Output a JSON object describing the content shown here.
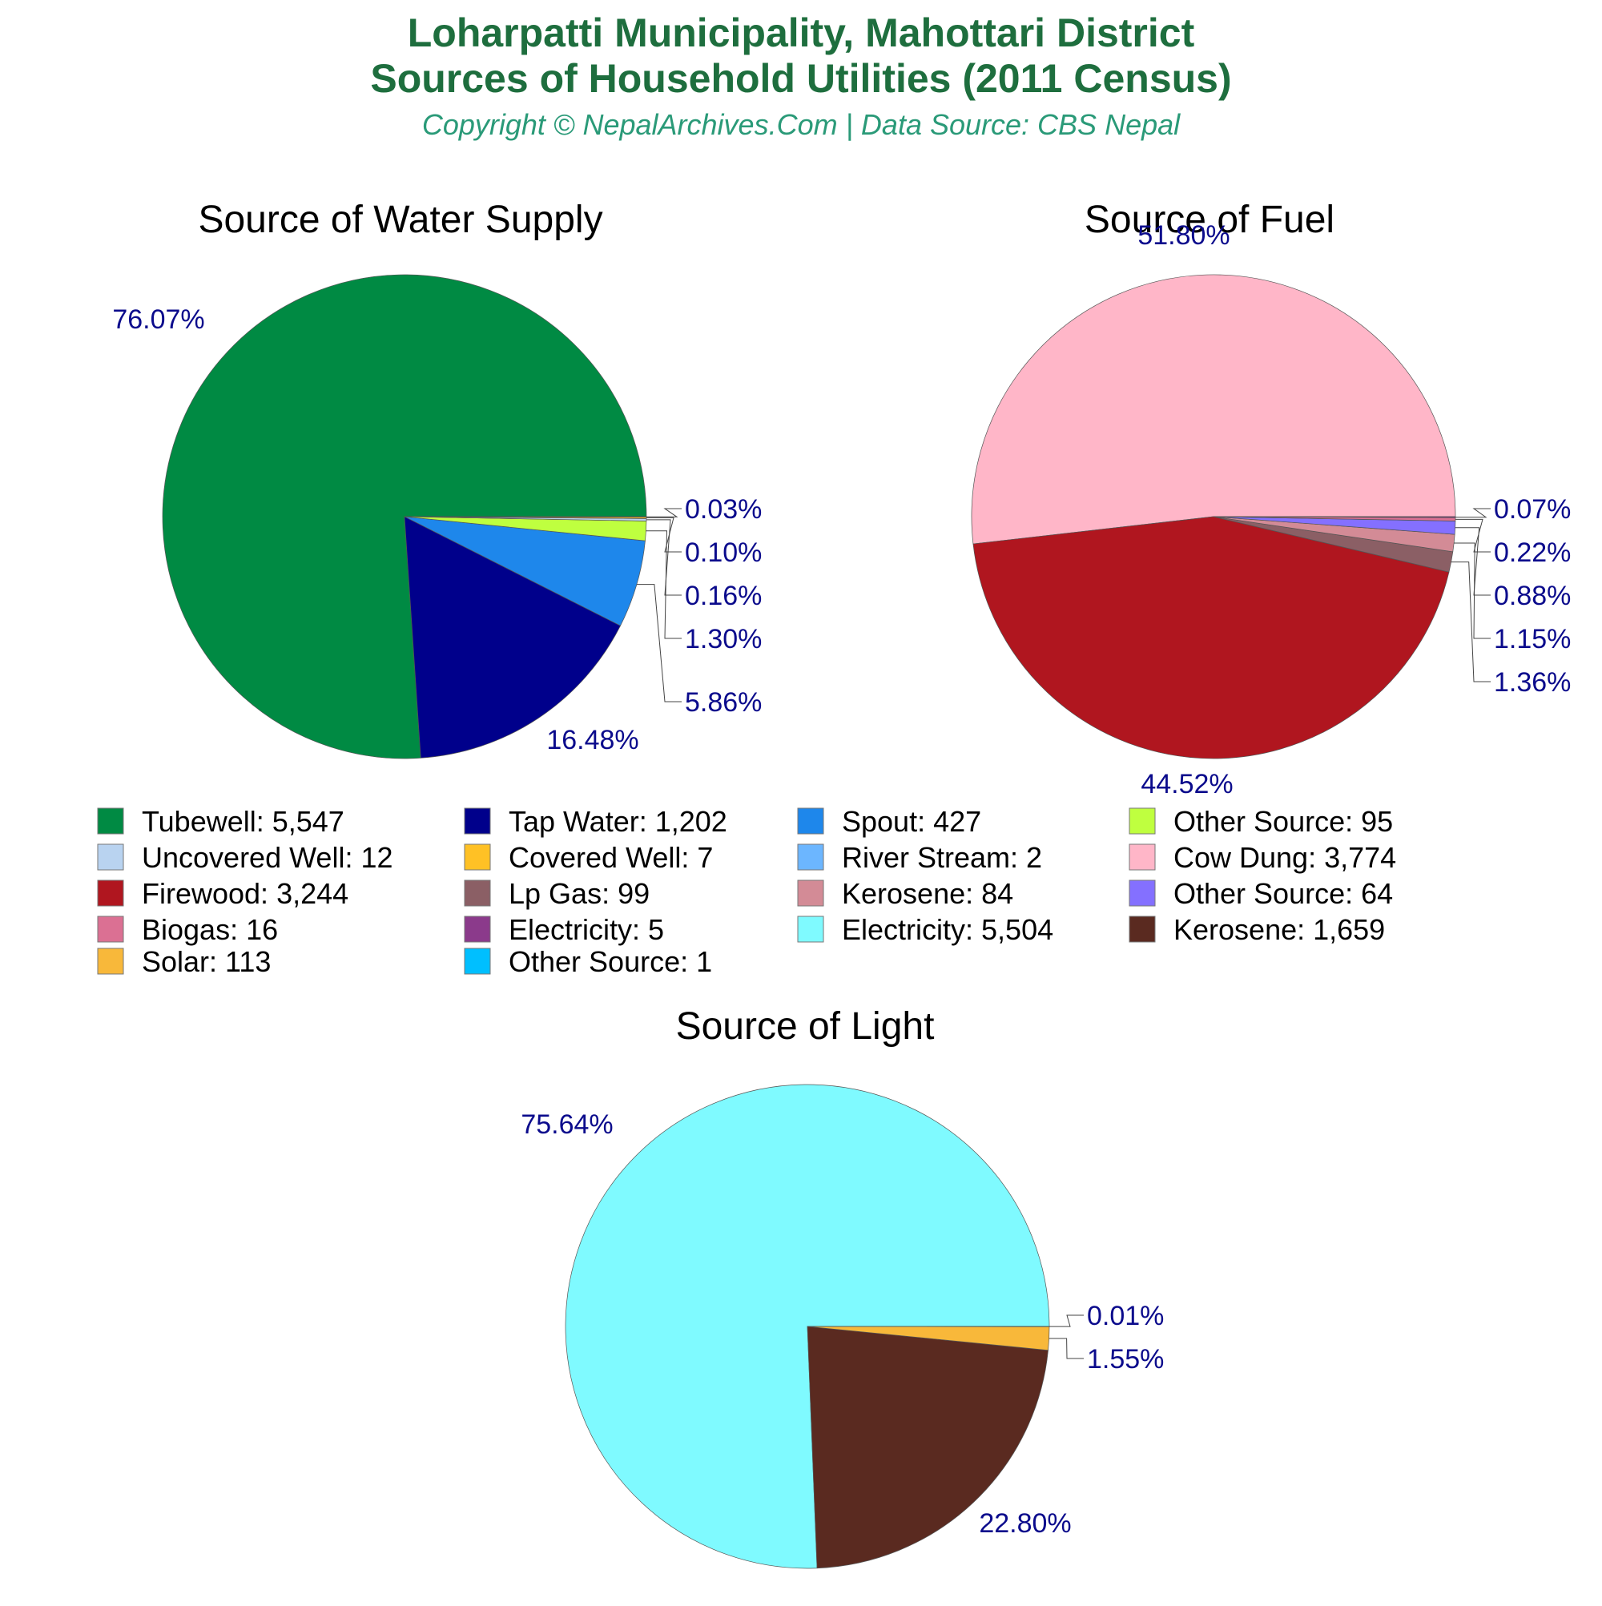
{
  "header": {
    "title_line1": "Loharpatti Municipality, Mahottari District",
    "title_line2": "Sources of Household Utilities (2011 Census)",
    "copyright": "Copyright © NepalArchives.Com | Data Source: CBS Nepal"
  },
  "colors": {
    "title": "#1e6e3e",
    "copyright": "#2a9a78",
    "pct_label": "#0b0b8c",
    "subtitle": "#000000",
    "leader_line": "#444444"
  },
  "chart_data": [
    {
      "type": "pie",
      "title": "Source of Water Supply",
      "slices": [
        {
          "label": "Tubewell",
          "value": 5547,
          "value_label": "5,547",
          "percent": "76.07%",
          "color": "#008a43"
        },
        {
          "label": "Tap Water",
          "value": 1202,
          "value_label": "1,202",
          "percent": "16.48%",
          "color": "#00008b"
        },
        {
          "label": "Spout",
          "value": 427,
          "value_label": "427",
          "percent": "5.86%",
          "color": "#1e87eb"
        },
        {
          "label": "Other Source",
          "value": 95,
          "value_label": "95",
          "percent": "1.30%",
          "color": "#bfff3f"
        },
        {
          "label": "Uncovered Well",
          "value": 12,
          "value_label": "12",
          "percent": "0.16%",
          "color": "#b9d3f0"
        },
        {
          "label": "Covered Well",
          "value": 7,
          "value_label": "7",
          "percent": "0.10%",
          "color": "#ffc125"
        },
        {
          "label": "River Stream",
          "value": 2,
          "value_label": "2",
          "percent": "0.03%",
          "color": "#6cb6ff"
        }
      ]
    },
    {
      "type": "pie",
      "title": "Source of Fuel",
      "slices": [
        {
          "label": "Cow Dung",
          "value": 3774,
          "value_label": "3,774",
          "percent": "51.80%",
          "color": "#ffb6c8"
        },
        {
          "label": "Firewood",
          "value": 3244,
          "value_label": "3,244",
          "percent": "44.52%",
          "color": "#b0161f"
        },
        {
          "label": "Lp Gas",
          "value": 99,
          "value_label": "99",
          "percent": "1.36%",
          "color": "#8b5f65"
        },
        {
          "label": "Kerosene",
          "value": 84,
          "value_label": "84",
          "percent": "1.15%",
          "color": "#d38b96"
        },
        {
          "label": "Other Source",
          "value": 64,
          "value_label": "64",
          "percent": "0.88%",
          "color": "#8470ff"
        },
        {
          "label": "Biogas",
          "value": 16,
          "value_label": "16",
          "percent": "0.22%",
          "color": "#db7093"
        },
        {
          "label": "Electricity",
          "value": 5,
          "value_label": "5",
          "percent": "0.07%",
          "color": "#8b3a8b"
        }
      ]
    },
    {
      "type": "pie",
      "title": "Source of Light",
      "slices": [
        {
          "label": "Electricity",
          "value": 5504,
          "value_label": "5,504",
          "percent": "75.64%",
          "color": "#7ffaff"
        },
        {
          "label": "Kerosene",
          "value": 1659,
          "value_label": "1,659",
          "percent": "22.80%",
          "color": "#5a2a20"
        },
        {
          "label": "Solar",
          "value": 113,
          "value_label": "113",
          "percent": "1.55%",
          "color": "#f8b83a"
        },
        {
          "label": "Other Source",
          "value": 1,
          "value_label": "1",
          "percent": "0.01%",
          "color": "#00bfff"
        }
      ]
    }
  ],
  "legend": [
    {
      "text": "Tubewell: 5,547",
      "color": "#008a43"
    },
    {
      "text": "Tap Water: 1,202",
      "color": "#00008b"
    },
    {
      "text": "Spout: 427",
      "color": "#1e87eb"
    },
    {
      "text": "Other Source: 95",
      "color": "#bfff3f"
    },
    {
      "text": "Uncovered Well: 12",
      "color": "#b9d3f0"
    },
    {
      "text": "Covered Well: 7",
      "color": "#ffc125"
    },
    {
      "text": "River Stream: 2",
      "color": "#6cb6ff"
    },
    {
      "text": "Cow Dung: 3,774",
      "color": "#ffb6c8"
    },
    {
      "text": "Firewood: 3,244",
      "color": "#b0161f"
    },
    {
      "text": "Lp Gas: 99",
      "color": "#8b5f65"
    },
    {
      "text": "Kerosene: 84",
      "color": "#d38b96"
    },
    {
      "text": "Other Source: 64",
      "color": "#8470ff"
    },
    {
      "text": "Biogas: 16",
      "color": "#db7093"
    },
    {
      "text": "Electricity: 5",
      "color": "#8b3a8b"
    },
    {
      "text": "Electricity: 5,504",
      "color": "#7ffaff"
    },
    {
      "text": "Kerosene: 1,659",
      "color": "#5a2a20"
    },
    {
      "text": "Solar: 113",
      "color": "#f8b83a"
    },
    {
      "text": "Other Source: 1",
      "color": "#00bfff"
    }
  ]
}
